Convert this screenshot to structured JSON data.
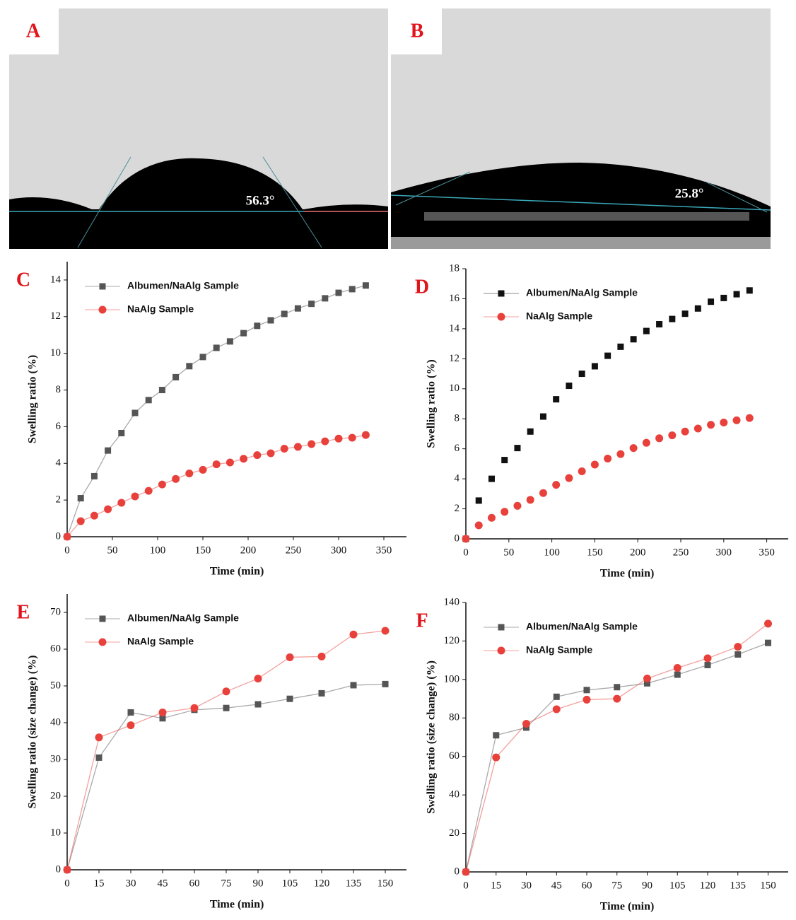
{
  "images": [
    {
      "label": "A",
      "angle": "56.3°"
    },
    {
      "label": "B",
      "angle": "25.8°"
    }
  ],
  "chart_data": [
    {
      "type": "line",
      "label": "C",
      "xlabel": "Time (min)",
      "ylabel": "Swelling ratio (%)",
      "x": [
        0,
        15,
        30,
        45,
        60,
        75,
        90,
        105,
        120,
        135,
        150,
        165,
        180,
        195,
        210,
        225,
        240,
        255,
        270,
        285,
        300,
        315,
        330
      ],
      "xlim": [
        0,
        375
      ],
      "xticks": [
        0,
        50,
        100,
        150,
        200,
        250,
        300,
        350
      ],
      "ylim": [
        0,
        15
      ],
      "yticks": [
        0,
        2,
        4,
        6,
        8,
        10,
        12,
        14
      ],
      "line": true,
      "series": [
        {
          "name": "Albumen/NaAlg Sample",
          "color": "#555555",
          "marker": "square",
          "values": [
            0,
            2.1,
            3.3,
            4.7,
            5.65,
            6.75,
            7.45,
            8.0,
            8.7,
            9.3,
            9.8,
            10.3,
            10.65,
            11.1,
            11.5,
            11.8,
            12.15,
            12.45,
            12.7,
            13.0,
            13.3,
            13.5,
            13.7
          ]
        },
        {
          "name": "NaAlg Sample",
          "color": "#e8413c",
          "marker": "circle",
          "values": [
            0,
            0.85,
            1.15,
            1.5,
            1.85,
            2.2,
            2.5,
            2.85,
            3.15,
            3.45,
            3.65,
            3.95,
            4.05,
            4.25,
            4.45,
            4.55,
            4.8,
            4.9,
            5.05,
            5.2,
            5.35,
            5.4,
            5.55
          ]
        }
      ]
    },
    {
      "type": "line",
      "label": "D",
      "xlabel": "Time (min)",
      "ylabel": "Swelling ratio (%)",
      "x": [
        0,
        15,
        30,
        45,
        60,
        75,
        90,
        105,
        120,
        135,
        150,
        165,
        180,
        195,
        210,
        225,
        240,
        255,
        270,
        285,
        300,
        315,
        330
      ],
      "xlim": [
        0,
        375
      ],
      "xticks": [
        0,
        50,
        100,
        150,
        200,
        250,
        300,
        350
      ],
      "ylim": [
        0,
        18
      ],
      "yticks": [
        0,
        2,
        4,
        6,
        8,
        10,
        12,
        14,
        16,
        18
      ],
      "line": false,
      "series": [
        {
          "name": "Albumen/NaAlg Sample",
          "color": "#111111",
          "marker": "square",
          "values": [
            0,
            2.55,
            4.0,
            5.25,
            6.05,
            7.15,
            8.15,
            9.3,
            10.2,
            11.0,
            11.5,
            12.2,
            12.8,
            13.3,
            13.85,
            14.3,
            14.65,
            15.0,
            15.35,
            15.8,
            16.05,
            16.3,
            16.55
          ]
        },
        {
          "name": "NaAlg Sample",
          "color": "#e8413c",
          "marker": "circle",
          "values": [
            0,
            0.9,
            1.4,
            1.8,
            2.2,
            2.6,
            3.05,
            3.6,
            4.05,
            4.5,
            4.95,
            5.35,
            5.65,
            6.05,
            6.4,
            6.7,
            6.9,
            7.15,
            7.35,
            7.6,
            7.75,
            7.9,
            8.05
          ]
        }
      ]
    },
    {
      "type": "line",
      "label": "E",
      "xlabel": "Time (min)",
      "ylabel": "Swelling ratio (size change) (%)",
      "x": [
        0,
        15,
        30,
        45,
        60,
        75,
        90,
        105,
        120,
        135,
        150
      ],
      "xlim": [
        0,
        160
      ],
      "xticks": [
        0,
        15,
        30,
        45,
        60,
        75,
        90,
        105,
        120,
        135,
        150
      ],
      "ylim": [
        0,
        75
      ],
      "yticks": [
        0,
        10,
        20,
        30,
        40,
        50,
        60,
        70
      ],
      "line": true,
      "series": [
        {
          "name": "Albumen/NaAlg Sample",
          "color": "#555555",
          "marker": "square",
          "values": [
            0,
            30.5,
            42.8,
            41.2,
            43.5,
            44,
            45,
            46.5,
            48,
            50.2,
            50.5
          ]
        },
        {
          "name": "NaAlg Sample",
          "color": "#e8413c",
          "marker": "circle",
          "values": [
            0,
            36,
            39.3,
            42.8,
            44,
            48.5,
            52,
            57.8,
            58,
            64,
            65
          ]
        }
      ]
    },
    {
      "type": "line",
      "label": "F",
      "xlabel": "Time (min)",
      "ylabel": "Swelling ratio (size change) (%)",
      "x": [
        0,
        15,
        30,
        45,
        60,
        75,
        90,
        105,
        120,
        135,
        150
      ],
      "xlim": [
        0,
        160
      ],
      "xticks": [
        0,
        15,
        30,
        45,
        60,
        75,
        90,
        105,
        120,
        135,
        150
      ],
      "ylim": [
        0,
        140
      ],
      "yticks": [
        0,
        20,
        40,
        60,
        80,
        100,
        120,
        140
      ],
      "line": true,
      "series": [
        {
          "name": "Albumen/NaAlg Sample",
          "color": "#555555",
          "marker": "square",
          "values": [
            0,
            71,
            75,
            91,
            94.5,
            96,
            98,
            102.5,
            107.5,
            113,
            119
          ]
        },
        {
          "name": "NaAlg Sample",
          "color": "#e8413c",
          "marker": "circle",
          "values": [
            0,
            59.5,
            77,
            84.5,
            89.5,
            90,
            100.5,
            106,
            111,
            117,
            129
          ]
        }
      ]
    }
  ]
}
